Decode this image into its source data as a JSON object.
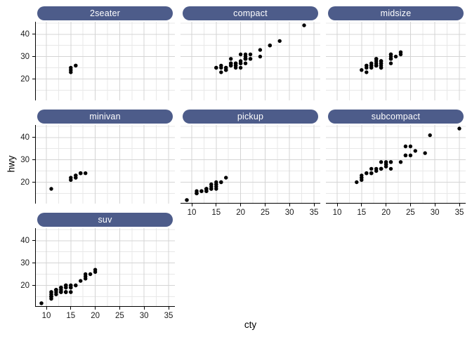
{
  "chart_data": {
    "type": "scatter",
    "title": "",
    "xlabel": "cty",
    "ylabel": "hwy",
    "facet_variable": "class",
    "legend": "none",
    "grid": "on",
    "x_ticks": [
      10,
      15,
      20,
      25,
      30,
      35
    ],
    "y_ticks": [
      20,
      30,
      40
    ],
    "x_minor_ticks": [
      12.5,
      17.5,
      22.5,
      27.5,
      32.5
    ],
    "y_minor_ticks": [
      15,
      25,
      35,
      45
    ],
    "x_domain": [
      7.7,
      36.3
    ],
    "y_domain": [
      10.4,
      45.6
    ],
    "point_color": "#000000",
    "strip_fill": "#4D5C8A",
    "strip_text_color": "#FFFFFF",
    "grid_major_color": "#D4D4D4",
    "grid_minor_color": "#E8E8E8",
    "axis_line_color": "#000000",
    "facets": [
      {
        "label": "2seater",
        "points": [
          [
            16,
            26
          ],
          [
            15,
            23
          ],
          [
            16,
            26
          ],
          [
            15,
            25
          ],
          [
            15,
            24
          ]
        ]
      },
      {
        "label": "compact",
        "points": [
          [
            18,
            29
          ],
          [
            21,
            29
          ],
          [
            20,
            31
          ],
          [
            21,
            30
          ],
          [
            16,
            26
          ],
          [
            18,
            26
          ],
          [
            18,
            27
          ],
          [
            18,
            26
          ],
          [
            16,
            25
          ],
          [
            20,
            28
          ],
          [
            19,
            27
          ],
          [
            15,
            25
          ],
          [
            17,
            25
          ],
          [
            17,
            25
          ],
          [
            15,
            25
          ],
          [
            21,
            29
          ],
          [
            19,
            27
          ],
          [
            20,
            25
          ],
          [
            20,
            27
          ],
          [
            19,
            25
          ],
          [
            20,
            27
          ],
          [
            21,
            27
          ],
          [
            21,
            29
          ],
          [
            21,
            31
          ],
          [
            22,
            31
          ],
          [
            18,
            26
          ],
          [
            18,
            27
          ],
          [
            24,
            30
          ],
          [
            24,
            33
          ],
          [
            26,
            35
          ],
          [
            28,
            37
          ],
          [
            26,
            35
          ],
          [
            21,
            29
          ],
          [
            19,
            26
          ],
          [
            21,
            29
          ],
          [
            22,
            29
          ],
          [
            17,
            24
          ],
          [
            33,
            44
          ],
          [
            21,
            29
          ],
          [
            19,
            26
          ],
          [
            22,
            29
          ],
          [
            21,
            29
          ],
          [
            21,
            29
          ],
          [
            21,
            29
          ],
          [
            16,
            23
          ],
          [
            17,
            24
          ]
        ]
      },
      {
        "label": "midsize",
        "points": [
          [
            15,
            24
          ],
          [
            17,
            25
          ],
          [
            16,
            23
          ],
          [
            19,
            27
          ],
          [
            22,
            30
          ],
          [
            18,
            26
          ],
          [
            18,
            29
          ],
          [
            17,
            26
          ],
          [
            18,
            26
          ],
          [
            18,
            27
          ],
          [
            21,
            30
          ],
          [
            21,
            31
          ],
          [
            18,
            26
          ],
          [
            18,
            26
          ],
          [
            19,
            28
          ],
          [
            23,
            31
          ],
          [
            23,
            32
          ],
          [
            19,
            27
          ],
          [
            19,
            26
          ],
          [
            18,
            26
          ],
          [
            19,
            25
          ],
          [
            19,
            25
          ],
          [
            18,
            26
          ],
          [
            16,
            26
          ],
          [
            17,
            27
          ],
          [
            18,
            28
          ],
          [
            16,
            25
          ],
          [
            21,
            29
          ],
          [
            21,
            27
          ],
          [
            21,
            31
          ],
          [
            21,
            31
          ],
          [
            18,
            26
          ],
          [
            18,
            26
          ],
          [
            19,
            28
          ],
          [
            21,
            29
          ],
          [
            18,
            29
          ],
          [
            19,
            28
          ],
          [
            21,
            29
          ],
          [
            16,
            26
          ],
          [
            18,
            26
          ],
          [
            17,
            26
          ]
        ]
      },
      {
        "label": "minivan",
        "points": [
          [
            18,
            24
          ],
          [
            17,
            24
          ],
          [
            16,
            22
          ],
          [
            16,
            22
          ],
          [
            17,
            24
          ],
          [
            17,
            24
          ],
          [
            11,
            17
          ],
          [
            15,
            22
          ],
          [
            15,
            21
          ],
          [
            16,
            23
          ],
          [
            16,
            23
          ]
        ]
      },
      {
        "label": "pickup",
        "points": [
          [
            15,
            19
          ],
          [
            14,
            18
          ],
          [
            13,
            17
          ],
          [
            14,
            17
          ],
          [
            14,
            19
          ],
          [
            14,
            19
          ],
          [
            9,
            12
          ],
          [
            11,
            15
          ],
          [
            12,
            16
          ],
          [
            9,
            12
          ],
          [
            13,
            17
          ],
          [
            13,
            17
          ],
          [
            12,
            16
          ],
          [
            11,
            15
          ],
          [
            11,
            16
          ],
          [
            13,
            17
          ],
          [
            11,
            15
          ],
          [
            14,
            17
          ],
          [
            14,
            17
          ],
          [
            13,
            16
          ],
          [
            13,
            16
          ],
          [
            13,
            17
          ],
          [
            11,
            15
          ],
          [
            13,
            17
          ],
          [
            15,
            20
          ],
          [
            16,
            20
          ],
          [
            17,
            22
          ],
          [
            15,
            17
          ],
          [
            15,
            19
          ],
          [
            15,
            18
          ],
          [
            16,
            20
          ]
        ]
      },
      {
        "label": "subcompact",
        "points": [
          [
            18,
            26
          ],
          [
            18,
            25
          ],
          [
            17,
            26
          ],
          [
            16,
            24
          ],
          [
            15,
            21
          ],
          [
            15,
            22
          ],
          [
            15,
            23
          ],
          [
            15,
            22
          ],
          [
            14,
            20
          ],
          [
            28,
            33
          ],
          [
            24,
            32
          ],
          [
            25,
            32
          ],
          [
            23,
            29
          ],
          [
            24,
            32
          ],
          [
            26,
            34
          ],
          [
            25,
            36
          ],
          [
            24,
            36
          ],
          [
            21,
            29
          ],
          [
            19,
            26
          ],
          [
            19,
            29
          ],
          [
            20,
            28
          ],
          [
            20,
            27
          ],
          [
            17,
            24
          ],
          [
            16,
            24
          ],
          [
            17,
            24
          ],
          [
            21,
            26
          ],
          [
            19,
            26
          ],
          [
            19,
            26
          ],
          [
            19,
            26
          ],
          [
            35,
            44
          ],
          [
            29,
            41
          ],
          [
            21,
            29
          ],
          [
            19,
            26
          ],
          [
            20,
            28
          ],
          [
            20,
            29
          ]
        ]
      },
      {
        "label": "suv",
        "points": [
          [
            14,
            20
          ],
          [
            11,
            15
          ],
          [
            14,
            20
          ],
          [
            13,
            17
          ],
          [
            12,
            17
          ],
          [
            14,
            19
          ],
          [
            11,
            14
          ],
          [
            11,
            15
          ],
          [
            14,
            17
          ],
          [
            13,
            17
          ],
          [
            13,
            17
          ],
          [
            9,
            12
          ],
          [
            13,
            17
          ],
          [
            11,
            16
          ],
          [
            11,
            15
          ],
          [
            12,
            16
          ],
          [
            11,
            17
          ],
          [
            11,
            17
          ],
          [
            12,
            18
          ],
          [
            14,
            17
          ],
          [
            15,
            19
          ],
          [
            14,
            17
          ],
          [
            13,
            19
          ],
          [
            13,
            19
          ],
          [
            17,
            22
          ],
          [
            15,
            19
          ],
          [
            15,
            20
          ],
          [
            14,
            17
          ],
          [
            9,
            12
          ],
          [
            14,
            19
          ],
          [
            13,
            18
          ],
          [
            11,
            14
          ],
          [
            11,
            15
          ],
          [
            12,
            18
          ],
          [
            12,
            18
          ],
          [
            11,
            15
          ],
          [
            11,
            17
          ],
          [
            11,
            16
          ],
          [
            12,
            18
          ],
          [
            14,
            17
          ],
          [
            13,
            19
          ],
          [
            13,
            19
          ],
          [
            13,
            17
          ],
          [
            14,
            17
          ],
          [
            15,
            17
          ],
          [
            14,
            20
          ],
          [
            12,
            18
          ],
          [
            18,
            25
          ],
          [
            18,
            24
          ],
          [
            20,
            27
          ],
          [
            19,
            25
          ],
          [
            20,
            26
          ],
          [
            18,
            23
          ],
          [
            15,
            20
          ],
          [
            16,
            20
          ],
          [
            15,
            19
          ],
          [
            15,
            17
          ],
          [
            16,
            20
          ],
          [
            14,
            17
          ],
          [
            11,
            15
          ],
          [
            13,
            18
          ]
        ]
      }
    ]
  }
}
